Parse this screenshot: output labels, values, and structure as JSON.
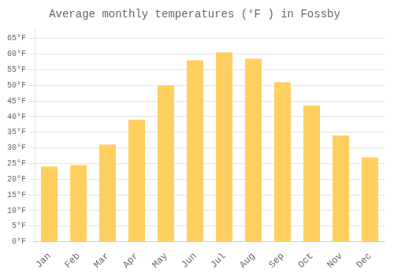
{
  "chart_data": {
    "type": "bar",
    "title": "Average monthly temperatures (°F ) in Fossby",
    "categories": [
      "Jan",
      "Feb",
      "Mar",
      "Apr",
      "May",
      "Jun",
      "Jul",
      "Aug",
      "Sep",
      "Oct",
      "Nov",
      "Dec"
    ],
    "values": [
      24,
      24.5,
      31,
      39,
      50,
      58,
      60.5,
      58.5,
      51,
      43.5,
      34,
      27
    ],
    "color": "#FFD060",
    "ylim": [
      0,
      68
    ],
    "yticks": [
      {
        "value": 0,
        "label": "0°F"
      },
      {
        "value": 5,
        "label": "5°F"
      },
      {
        "value": 10,
        "label": "10°F"
      },
      {
        "value": 15,
        "label": "15°F"
      },
      {
        "value": 20,
        "label": "20°F"
      },
      {
        "value": 25,
        "label": "25°F"
      },
      {
        "value": 30,
        "label": "30°F"
      },
      {
        "value": 35,
        "label": "35°F"
      },
      {
        "value": 40,
        "label": "40°F"
      },
      {
        "value": 45,
        "label": "45°F"
      },
      {
        "value": 50,
        "label": "50°F"
      },
      {
        "value": 55,
        "label": "55°F"
      },
      {
        "value": 60,
        "label": "60°F"
      },
      {
        "value": 65,
        "label": "65°F"
      }
    ],
    "grid": true
  }
}
